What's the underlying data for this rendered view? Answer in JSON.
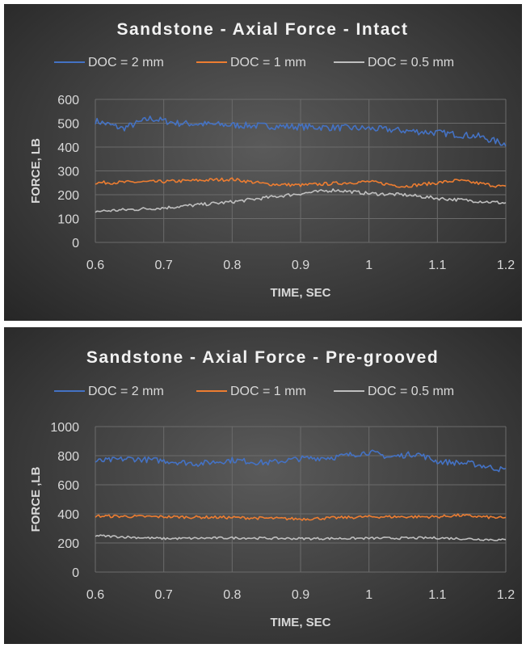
{
  "chart_data": [
    {
      "type": "line",
      "title": "Sandstone - Axial Force - Intact",
      "xlabel": "TIME, SEC",
      "ylabel": "FORCE, LB",
      "xlim": [
        0.6,
        1.2
      ],
      "ylim": [
        0,
        600
      ],
      "xticks": [
        "0.6",
        "0.7",
        "0.8",
        "0.9",
        "1",
        "1.1",
        "1.2"
      ],
      "yticks": [
        "0",
        "100",
        "200",
        "300",
        "400",
        "500",
        "600"
      ],
      "grid": true,
      "legend_position": "top",
      "series": [
        {
          "name": "DOC = 2 mm",
          "color": "#4472c4",
          "x": [
            0.6,
            0.64,
            0.68,
            0.72,
            0.8,
            0.9,
            1.0,
            1.1,
            1.16,
            1.2
          ],
          "y": [
            510,
            478,
            520,
            500,
            492,
            485,
            478,
            460,
            445,
            412
          ]
        },
        {
          "name": "DOC = 1 mm",
          "color": "#ed7d31",
          "x": [
            0.6,
            0.7,
            0.8,
            0.85,
            0.9,
            1.0,
            1.05,
            1.1,
            1.13,
            1.2
          ],
          "y": [
            250,
            255,
            265,
            245,
            240,
            255,
            235,
            250,
            260,
            232
          ]
        },
        {
          "name": "DOC = 0.5 mm",
          "color": "#bfbfbf",
          "x": [
            0.6,
            0.7,
            0.8,
            0.9,
            0.95,
            1.0,
            1.05,
            1.1,
            1.2
          ],
          "y": [
            130,
            145,
            170,
            205,
            220,
            205,
            200,
            185,
            165
          ]
        }
      ]
    },
    {
      "type": "line",
      "title": "Sandstone - Axial Force - Pre-grooved",
      "xlabel": "TIME, SEC",
      "ylabel": "FORCE ,LB",
      "xlim": [
        0.6,
        1.2
      ],
      "ylim": [
        0,
        1000
      ],
      "xticks": [
        "0.6",
        "0.7",
        "0.8",
        "0.9",
        "1",
        "1.1",
        "1.2"
      ],
      "yticks": [
        "0",
        "200",
        "400",
        "600",
        "800",
        "1000"
      ],
      "grid": true,
      "legend_position": "top",
      "series": [
        {
          "name": "DOC = 2 mm",
          "color": "#4472c4",
          "x": [
            0.6,
            0.65,
            0.7,
            0.75,
            0.8,
            0.85,
            0.9,
            0.95,
            1.0,
            1.03,
            1.07,
            1.1,
            1.15,
            1.2
          ],
          "y": [
            760,
            780,
            765,
            745,
            770,
            750,
            780,
            790,
            825,
            790,
            815,
            760,
            745,
            700
          ]
        },
        {
          "name": "DOC = 1 mm",
          "color": "#ed7d31",
          "x": [
            0.6,
            0.7,
            0.8,
            0.9,
            1.0,
            1.1,
            1.13,
            1.2
          ],
          "y": [
            385,
            380,
            375,
            365,
            380,
            380,
            390,
            370
          ]
        },
        {
          "name": "DOC = 0.5 mm",
          "color": "#bfbfbf",
          "x": [
            0.6,
            0.7,
            0.8,
            0.9,
            1.0,
            1.1,
            1.2
          ],
          "y": [
            250,
            230,
            235,
            230,
            232,
            235,
            220
          ]
        }
      ]
    }
  ]
}
